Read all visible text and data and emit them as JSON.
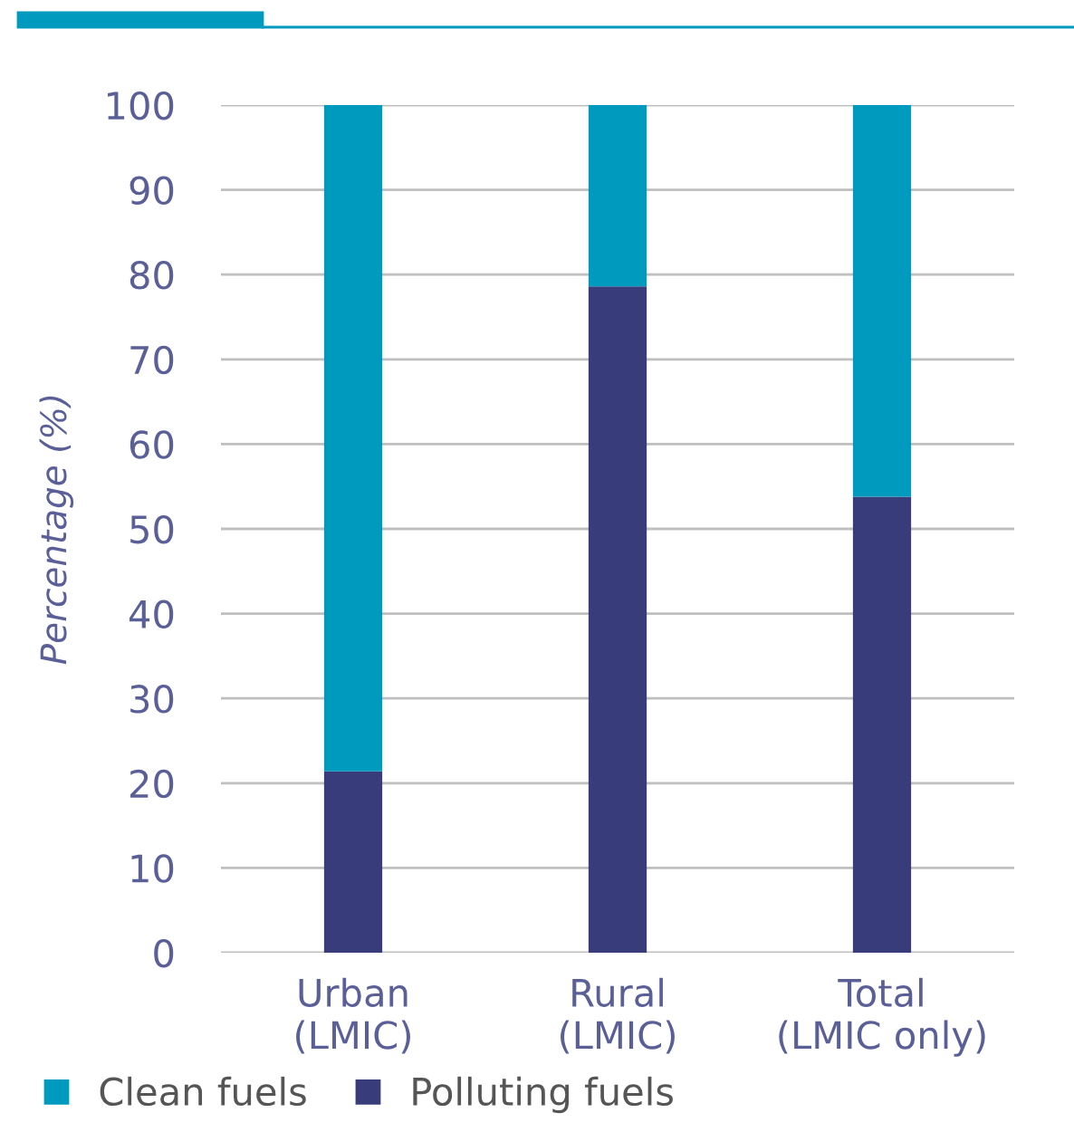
{
  "chart_data": {
    "type": "bar",
    "stacked": true,
    "ylabel": "Percentage (%)",
    "categories": [
      "Urban\n(LMIC)",
      "Rural\n(LMIC)",
      "Total\n(LMIC only)"
    ],
    "series": [
      {
        "name": "Polluting fuels",
        "color": "#383c7a",
        "values": [
          21.4,
          78.6,
          53.8
        ]
      },
      {
        "name": "Clean fuels",
        "color": "#009abf",
        "values": [
          78.6,
          21.4,
          46.2
        ]
      }
    ],
    "ylim": [
      0,
      100
    ],
    "yticks": [
      0,
      10,
      20,
      30,
      40,
      50,
      60,
      70,
      80,
      90,
      100
    ],
    "grid": "y",
    "legend": "bottom left"
  }
}
